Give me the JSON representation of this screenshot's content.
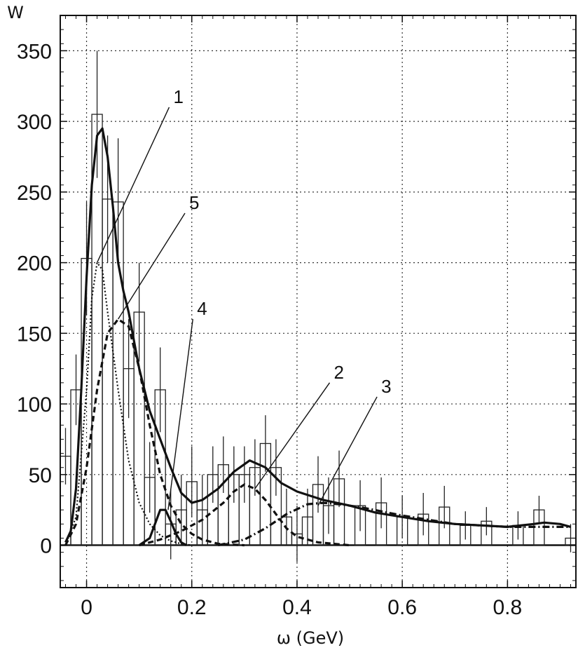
{
  "chart_data": {
    "type": "line",
    "title": "",
    "xlabel": "ω (GeV)",
    "ylabel": "W",
    "xlim": [
      -0.05,
      0.93
    ],
    "ylim": [
      -30,
      375
    ],
    "xticks": [
      0,
      0.2,
      0.4,
      0.6,
      0.8
    ],
    "xtick_labels": [
      "0",
      "0.2",
      "0.4",
      "0.6",
      "0.8"
    ],
    "yticks": [
      0,
      50,
      100,
      150,
      200,
      250,
      300,
      350
    ],
    "ytick_labels": [
      "0",
      "50",
      "100",
      "150",
      "200",
      "250",
      "300",
      "350"
    ],
    "grid": true,
    "histogram": {
      "bin_width": 0.02,
      "bins": [
        {
          "x": -0.04,
          "y": 63,
          "err": 20
        },
        {
          "x": -0.02,
          "y": 110,
          "err": 25
        },
        {
          "x": 0.0,
          "y": 203,
          "err": 40
        },
        {
          "x": 0.02,
          "y": 305,
          "err": 45
        },
        {
          "x": 0.04,
          "y": 245,
          "err": 45
        },
        {
          "x": 0.06,
          "y": 243,
          "err": 45
        },
        {
          "x": 0.08,
          "y": 125,
          "err": 35
        },
        {
          "x": 0.1,
          "y": 165,
          "err": 35
        },
        {
          "x": 0.12,
          "y": 48,
          "err": 25
        },
        {
          "x": 0.14,
          "y": 110,
          "err": 30
        },
        {
          "x": 0.16,
          "y": 15,
          "err": 25
        },
        {
          "x": 0.18,
          "y": 25,
          "err": 25
        },
        {
          "x": 0.2,
          "y": 45,
          "err": 25
        },
        {
          "x": 0.22,
          "y": 25,
          "err": 25
        },
        {
          "x": 0.24,
          "y": 50,
          "err": 20
        },
        {
          "x": 0.26,
          "y": 57,
          "err": 20
        },
        {
          "x": 0.28,
          "y": 50,
          "err": 20
        },
        {
          "x": 0.3,
          "y": 50,
          "err": 20
        },
        {
          "x": 0.32,
          "y": 55,
          "err": 20
        },
        {
          "x": 0.34,
          "y": 72,
          "err": 20
        },
        {
          "x": 0.36,
          "y": 55,
          "err": 20
        },
        {
          "x": 0.38,
          "y": 20,
          "err": 20
        },
        {
          "x": 0.4,
          "y": 8,
          "err": 20
        },
        {
          "x": 0.42,
          "y": 20,
          "err": 20
        },
        {
          "x": 0.44,
          "y": 43,
          "err": 20
        },
        {
          "x": 0.46,
          "y": 28,
          "err": 20
        },
        {
          "x": 0.48,
          "y": 47,
          "err": 20
        },
        {
          "x": 0.52,
          "y": 28,
          "err": 18
        },
        {
          "x": 0.56,
          "y": 30,
          "err": 18
        },
        {
          "x": 0.6,
          "y": 20,
          "err": 15
        },
        {
          "x": 0.64,
          "y": 22,
          "err": 15
        },
        {
          "x": 0.68,
          "y": 27,
          "err": 15
        },
        {
          "x": 0.72,
          "y": 14,
          "err": 10
        },
        {
          "x": 0.76,
          "y": 17,
          "err": 10
        },
        {
          "x": 0.82,
          "y": 14,
          "err": 10
        },
        {
          "x": 0.86,
          "y": 25,
          "err": 10
        },
        {
          "x": 0.92,
          "y": 5,
          "err": 10
        }
      ]
    },
    "series": [
      {
        "style": "solid",
        "x": [
          -0.04,
          -0.03,
          -0.02,
          -0.01,
          0.0,
          0.01,
          0.02,
          0.03,
          0.04,
          0.05,
          0.06,
          0.07,
          0.08,
          0.09,
          0.1,
          0.12,
          0.14,
          0.16,
          0.18,
          0.2,
          0.22,
          0.25,
          0.28,
          0.31,
          0.34,
          0.37,
          0.4,
          0.45,
          0.5,
          0.55,
          0.6,
          0.65,
          0.7,
          0.75,
          0.8,
          0.85,
          0.87,
          0.9,
          0.92
        ],
        "y": [
          2,
          10,
          40,
          110,
          190,
          255,
          290,
          295,
          275,
          240,
          200,
          180,
          165,
          145,
          125,
          95,
          75,
          55,
          37,
          30,
          32,
          40,
          52,
          60,
          55,
          44,
          38,
          32,
          28,
          23,
          20,
          17,
          15,
          14,
          13,
          15,
          16,
          15,
          13
        ]
      },
      {
        "style": "dotted",
        "label": "1",
        "x": [
          -0.04,
          -0.02,
          0.0,
          0.01,
          0.02,
          0.03,
          0.04,
          0.06,
          0.08,
          0.1,
          0.12,
          0.14,
          0.16,
          0.18,
          0.2
        ],
        "y": [
          0,
          20,
          110,
          175,
          200,
          195,
          165,
          110,
          60,
          30,
          15,
          7,
          3,
          1,
          0
        ]
      },
      {
        "style": "dashed",
        "label": "5",
        "x": [
          -0.04,
          -0.02,
          0.0,
          0.02,
          0.04,
          0.06,
          0.08,
          0.1,
          0.12,
          0.14,
          0.16,
          0.18,
          0.2,
          0.22,
          0.25,
          0.3
        ],
        "y": [
          0,
          15,
          55,
          110,
          150,
          160,
          155,
          125,
          85,
          50,
          28,
          15,
          8,
          4,
          1,
          0
        ]
      },
      {
        "style": "solid",
        "label": "4",
        "x": [
          0.1,
          0.12,
          0.13,
          0.14,
          0.15,
          0.16,
          0.17,
          0.18,
          0.19
        ],
        "y": [
          0,
          5,
          15,
          25,
          25,
          17,
          8,
          2,
          0
        ]
      },
      {
        "style": "dashed",
        "label": "2",
        "x": [
          0.1,
          0.14,
          0.18,
          0.22,
          0.26,
          0.28,
          0.3,
          0.32,
          0.34,
          0.36,
          0.38,
          0.4,
          0.44,
          0.5
        ],
        "y": [
          0,
          4,
          10,
          18,
          30,
          38,
          43,
          40,
          32,
          22,
          12,
          6,
          2,
          0
        ]
      },
      {
        "style": "dashdot",
        "label": "3",
        "x": [
          0.25,
          0.3,
          0.34,
          0.38,
          0.42,
          0.45,
          0.48,
          0.52,
          0.56,
          0.6,
          0.65,
          0.7,
          0.8,
          0.9,
          0.92
        ],
        "y": [
          0,
          4,
          12,
          22,
          29,
          30,
          29,
          27,
          24,
          21,
          18,
          15,
          13,
          13,
          13
        ]
      }
    ],
    "annotations": [
      {
        "text": "1",
        "x": 0.165,
        "y": 313,
        "to_x": 0.02,
        "to_y": 200
      },
      {
        "text": "5",
        "x": 0.195,
        "y": 238,
        "to_x": 0.06,
        "to_y": 160
      },
      {
        "text": "4",
        "x": 0.21,
        "y": 163,
        "to_x": 0.155,
        "to_y": 25
      },
      {
        "text": "2",
        "x": 0.47,
        "y": 118,
        "to_x": 0.32,
        "to_y": 40
      },
      {
        "text": "3",
        "x": 0.56,
        "y": 108,
        "to_x": 0.44,
        "to_y": 28
      }
    ]
  }
}
